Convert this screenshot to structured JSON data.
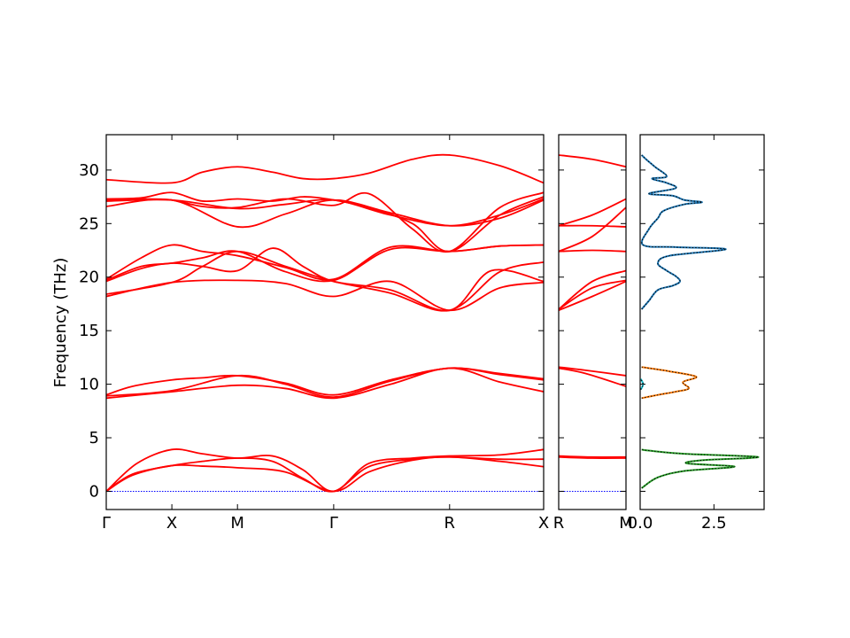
{
  "chart_data": [
    {
      "type": "line",
      "panel": "band-structure-main",
      "ylabel": "Frequency (THz)",
      "ylim": [
        -1.7,
        33.3
      ],
      "yticks": [
        0,
        5,
        10,
        15,
        20,
        25,
        30
      ],
      "xlim": [
        0,
        1
      ],
      "xticks": [
        {
          "label": "Γ",
          "pos": 0
        },
        {
          "label": "X",
          "pos": 0.15
        },
        {
          "label": "M",
          "pos": 0.3
        },
        {
          "label": "Γ",
          "pos": 0.52
        },
        {
          "label": "R",
          "pos": 0.785
        },
        {
          "label": "X",
          "pos": 1
        }
      ],
      "line_color": "#ff0000",
      "zero_line_color": "#0000ff",
      "series": [
        {
          "x": [
            0,
            0.06,
            0.15,
            0.22,
            0.3,
            0.41,
            0.52,
            0.6,
            0.7,
            0.785,
            0.9,
            1
          ],
          "y": [
            0,
            1.5,
            2.4,
            2.35,
            2.2,
            1.8,
            0,
            1.8,
            2.9,
            3.2,
            2.8,
            2.3
          ]
        },
        {
          "x": [
            0,
            0.06,
            0.15,
            0.22,
            0.3,
            0.38,
            0.45,
            0.52,
            0.6,
            0.7,
            0.785,
            0.9,
            1
          ],
          "y": [
            0,
            1.6,
            2.4,
            2.8,
            3.1,
            2.8,
            1.2,
            0,
            2.3,
            3.0,
            3.2,
            3.0,
            3.0
          ]
        },
        {
          "x": [
            0,
            0.07,
            0.15,
            0.22,
            0.3,
            0.38,
            0.45,
            0.52,
            0.6,
            0.7,
            0.785,
            0.9,
            1
          ],
          "y": [
            0,
            2.6,
            3.9,
            3.5,
            3.1,
            3.3,
            2.0,
            0,
            2.6,
            3.1,
            3.3,
            3.4,
            3.9
          ]
        },
        {
          "x": [
            0,
            0.15,
            0.3,
            0.41,
            0.52,
            0.65,
            0.785,
            0.9,
            1
          ],
          "y": [
            8.7,
            9.3,
            9.9,
            9.6,
            8.7,
            10.0,
            11.5,
            10.2,
            9.3
          ]
        },
        {
          "x": [
            0,
            0.15,
            0.3,
            0.41,
            0.52,
            0.65,
            0.785,
            0.9,
            1
          ],
          "y": [
            8.9,
            9.4,
            10.8,
            10.0,
            8.8,
            10.3,
            11.5,
            10.9,
            10.4
          ]
        },
        {
          "x": [
            0,
            0.06,
            0.15,
            0.22,
            0.3,
            0.41,
            0.52,
            0.65,
            0.785,
            0.9,
            1
          ],
          "y": [
            9.0,
            9.8,
            10.4,
            10.6,
            10.8,
            10.1,
            9.0,
            10.4,
            11.5,
            11.0,
            10.5
          ]
        },
        {
          "x": [
            0,
            0.15,
            0.3,
            0.41,
            0.52,
            0.65,
            0.785,
            0.9,
            1
          ],
          "y": [
            18.2,
            19.5,
            19.7,
            19.4,
            18.2,
            19.6,
            16.9,
            19.0,
            19.5
          ]
        },
        {
          "x": [
            0,
            0.15,
            0.22,
            0.3,
            0.41,
            0.52,
            0.65,
            0.785,
            0.9,
            1
          ],
          "y": [
            18.4,
            19.5,
            21.0,
            22.4,
            21.0,
            19.6,
            18.5,
            16.9,
            20.5,
            21.4
          ]
        },
        {
          "x": [
            0,
            0.08,
            0.15,
            0.22,
            0.3,
            0.38,
            0.45,
            0.52,
            0.65,
            0.785,
            0.88,
            1
          ],
          "y": [
            19.6,
            20.8,
            21.3,
            21.0,
            20.6,
            22.7,
            21.0,
            19.6,
            18.8,
            16.9,
            20.6,
            19.6
          ]
        },
        {
          "x": [
            0,
            0.08,
            0.15,
            0.22,
            0.3,
            0.41,
            0.52,
            0.65,
            0.785,
            0.9,
            1
          ],
          "y": [
            19.7,
            21.0,
            21.3,
            21.8,
            22.4,
            20.5,
            19.7,
            22.6,
            22.4,
            22.9,
            23.0
          ]
        },
        {
          "x": [
            0,
            0.08,
            0.15,
            0.22,
            0.3,
            0.41,
            0.52,
            0.65,
            0.785,
            0.9,
            1
          ],
          "y": [
            19.8,
            21.8,
            23.0,
            22.4,
            22.0,
            20.9,
            19.8,
            22.8,
            22.4,
            22.9,
            23.0
          ]
        },
        {
          "x": [
            0,
            0.15,
            0.3,
            0.41,
            0.52,
            0.65,
            0.785,
            0.9,
            1
          ],
          "y": [
            26.6,
            27.2,
            24.7,
            25.9,
            27.2,
            26.0,
            24.8,
            25.5,
            27.2
          ]
        },
        {
          "x": [
            0,
            0.15,
            0.3,
            0.41,
            0.52,
            0.65,
            0.785,
            0.9,
            1
          ],
          "y": [
            27.1,
            27.2,
            26.4,
            26.8,
            27.2,
            25.8,
            24.8,
            25.8,
            27.3
          ]
        },
        {
          "x": [
            0,
            0.08,
            0.15,
            0.22,
            0.3,
            0.41,
            0.52,
            0.6,
            0.7,
            0.785,
            0.9,
            1
          ],
          "y": [
            27.2,
            27.3,
            27.2,
            26.6,
            26.5,
            27.3,
            26.7,
            27.8,
            24.5,
            22.4,
            26.5,
            27.9
          ]
        },
        {
          "x": [
            0,
            0.08,
            0.15,
            0.22,
            0.3,
            0.38,
            0.45,
            0.52,
            0.6,
            0.7,
            0.785,
            0.9,
            1
          ],
          "y": [
            27.3,
            27.4,
            27.9,
            27.1,
            27.3,
            27.1,
            27.5,
            27.2,
            26.5,
            25.0,
            22.4,
            25.8,
            27.5
          ]
        },
        {
          "x": [
            0,
            0.15,
            0.22,
            0.3,
            0.38,
            0.45,
            0.52,
            0.6,
            0.7,
            0.785,
            0.9,
            1
          ],
          "y": [
            29.1,
            28.8,
            29.8,
            30.3,
            29.8,
            29.2,
            29.2,
            29.7,
            31.0,
            31.4,
            30.4,
            28.8
          ]
        }
      ]
    },
    {
      "type": "line",
      "panel": "band-structure-segment",
      "ylim": [
        -1.7,
        33.3
      ],
      "xticks": [
        {
          "label": "R",
          "pos": 0
        },
        {
          "label": "M",
          "pos": 1
        }
      ],
      "line_color": "#ff0000",
      "zero_line_color": "#0000ff",
      "series": [
        {
          "x": [
            0,
            0.5,
            1
          ],
          "y": [
            3.2,
            3.1,
            3.1
          ]
        },
        {
          "x": [
            0,
            0.5,
            1
          ],
          "y": [
            3.3,
            3.2,
            3.2
          ]
        },
        {
          "x": [
            0,
            0.4,
            1
          ],
          "y": [
            11.5,
            11.0,
            9.8
          ]
        },
        {
          "x": [
            0,
            0.4,
            1
          ],
          "y": [
            11.6,
            11.3,
            10.8
          ]
        },
        {
          "x": [
            0,
            0.5,
            1
          ],
          "y": [
            16.9,
            18.2,
            19.6
          ]
        },
        {
          "x": [
            0,
            0.5,
            1
          ],
          "y": [
            17.0,
            19.0,
            19.7
          ]
        },
        {
          "x": [
            0,
            0.5,
            1
          ],
          "y": [
            17.0,
            19.6,
            20.6
          ]
        },
        {
          "x": [
            0,
            0.5,
            1
          ],
          "y": [
            22.4,
            22.5,
            22.4
          ]
        },
        {
          "x": [
            0,
            0.5,
            1
          ],
          "y": [
            22.4,
            23.8,
            26.5
          ]
        },
        {
          "x": [
            0,
            0.5,
            1
          ],
          "y": [
            24.8,
            24.8,
            24.7
          ]
        },
        {
          "x": [
            0,
            0.5,
            1
          ],
          "y": [
            24.8,
            25.8,
            27.3
          ]
        },
        {
          "x": [
            0,
            0.5,
            1
          ],
          "y": [
            31.4,
            31.0,
            30.3
          ]
        }
      ]
    },
    {
      "type": "line",
      "panel": "density-of-states",
      "xlim": [
        0,
        4.2
      ],
      "ylim": [
        -1.7,
        33.3
      ],
      "xticks": [
        {
          "label": "0.0",
          "pos": 0
        },
        {
          "label": "2.5",
          "pos": 2.5
        }
      ],
      "series": [
        {
          "name": "",
          "color": "#1f77b4",
          "points": [
            [
              0.05,
              17.0
            ],
            [
              0.3,
              17.8
            ],
            [
              0.6,
              18.8
            ],
            [
              1.1,
              19.2
            ],
            [
              1.35,
              19.6
            ],
            [
              1.2,
              20.1
            ],
            [
              0.9,
              20.6
            ],
            [
              0.6,
              21.3
            ],
            [
              1.0,
              22.0
            ],
            [
              2.9,
              22.6
            ],
            [
              1.2,
              22.8
            ],
            [
              0.1,
              23.0
            ],
            [
              0.3,
              24.5
            ],
            [
              0.6,
              25.5
            ],
            [
              0.8,
              26.2
            ],
            [
              1.5,
              26.8
            ],
            [
              2.1,
              27.0
            ],
            [
              1.5,
              27.2
            ],
            [
              1.1,
              27.6
            ],
            [
              0.3,
              27.8
            ],
            [
              1.2,
              28.3
            ],
            [
              0.9,
              28.8
            ],
            [
              0.4,
              29.2
            ],
            [
              0.9,
              29.4
            ],
            [
              0.5,
              30.3
            ],
            [
              0.2,
              31.0
            ],
            [
              0.05,
              31.4
            ]
          ]
        },
        {
          "name": "",
          "color": "#ff7f0e",
          "points": [
            [
              0.05,
              8.7
            ],
            [
              0.6,
              9.0
            ],
            [
              1.2,
              9.3
            ],
            [
              1.65,
              9.6
            ],
            [
              1.45,
              10.2
            ],
            [
              1.9,
              10.7
            ],
            [
              1.0,
              11.2
            ],
            [
              0.3,
              11.5
            ],
            [
              0.05,
              11.6
            ]
          ]
        },
        {
          "name": "",
          "color": "#2ca02c",
          "points": [
            [
              0.05,
              0.3
            ],
            [
              0.6,
              1.3
            ],
            [
              1.5,
              1.9
            ],
            [
              3.2,
              2.3
            ],
            [
              1.6,
              2.6
            ],
            [
              2.1,
              2.9
            ],
            [
              4.0,
              3.2
            ],
            [
              1.5,
              3.5
            ],
            [
              0.3,
              3.8
            ],
            [
              0.05,
              3.9
            ]
          ]
        },
        {
          "name": "",
          "color": "#17becf",
          "points": [
            [
              0.02,
              9.5
            ],
            [
              0.1,
              10.0
            ],
            [
              0.02,
              10.5
            ]
          ]
        }
      ]
    }
  ]
}
